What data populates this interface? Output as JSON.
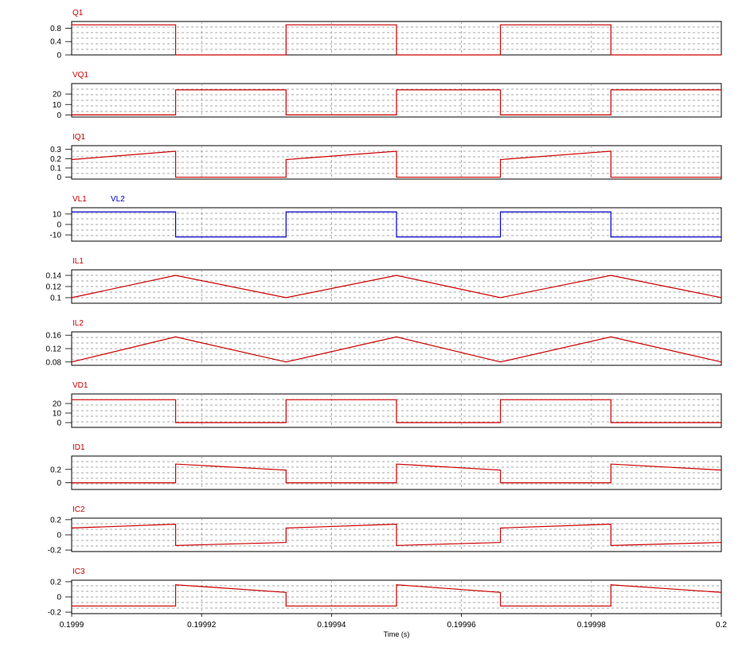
{
  "chart_data": {
    "type": "line",
    "xlabel": "Time (s)",
    "xlim": [
      0.1999,
      0.2
    ],
    "x_ticks": [
      0.1999,
      0.19992,
      0.19994,
      0.19996,
      0.19998,
      0.2
    ],
    "x_tick_labels": [
      "0.1999",
      "0.19992",
      "0.19994",
      "0.19996",
      "0.19998",
      "0.2"
    ],
    "colors": {
      "red": "#cc0000",
      "blue": "#0000cc"
    },
    "panels": [
      {
        "id": "q1",
        "labels": [
          {
            "text": "Q1",
            "color": "#cc0000"
          }
        ],
        "ylim": [
          0,
          1
        ],
        "yticks": [
          0,
          0.4,
          0.8
        ],
        "ytick_labels": [
          "0",
          "0.4",
          "0.8"
        ],
        "series": [
          {
            "color": "#cc0000",
            "x": [
              0.1999,
              0.199916,
              0.199916,
              0.199933,
              0.199933,
              0.19995,
              0.19995,
              0.199966,
              0.199966,
              0.199983,
              0.199983,
              0.2
            ],
            "y": [
              0.9,
              0.9,
              0,
              0,
              0.9,
              0.9,
              0,
              0,
              0.9,
              0.9,
              0,
              0
            ]
          }
        ]
      },
      {
        "id": "vq1",
        "labels": [
          {
            "text": "VQ1",
            "color": "#cc0000"
          }
        ],
        "ylim": [
          -2,
          30
        ],
        "yticks": [
          0,
          10,
          20
        ],
        "ytick_labels": [
          "0",
          "10",
          "20"
        ],
        "series": [
          {
            "color": "#cc0000",
            "x": [
              0.1999,
              0.199916,
              0.199916,
              0.199933,
              0.199933,
              0.19995,
              0.19995,
              0.199966,
              0.199966,
              0.199983,
              0.199983,
              0.2
            ],
            "y": [
              0,
              0,
              24,
              24,
              0,
              0,
              24,
              24,
              0,
              0,
              24,
              24
            ]
          }
        ]
      },
      {
        "id": "iq1",
        "labels": [
          {
            "text": "IQ1",
            "color": "#cc0000"
          }
        ],
        "ylim": [
          -0.02,
          0.34
        ],
        "yticks": [
          0,
          0.1,
          0.2,
          0.3
        ],
        "ytick_labels": [
          "0",
          "0.1",
          "0.2",
          "0.3"
        ],
        "series": [
          {
            "color": "#cc0000",
            "x": [
              0.1999,
              0.199916,
              0.199916,
              0.199933,
              0.199933,
              0.19995,
              0.19995,
              0.199966,
              0.199966,
              0.199983,
              0.199983,
              0.2
            ],
            "y": [
              0.19,
              0.28,
              0,
              0,
              0.19,
              0.28,
              0,
              0,
              0.19,
              0.28,
              0,
              0
            ]
          }
        ]
      },
      {
        "id": "vl",
        "labels": [
          {
            "text": "VL1",
            "color": "#cc0000"
          },
          {
            "text": "VL2",
            "color": "#0000cc"
          }
        ],
        "ylim": [
          -16,
          16
        ],
        "yticks": [
          -10,
          0,
          10
        ],
        "ytick_labels": [
          "-10",
          "0",
          "10"
        ],
        "series": [
          {
            "color": "#0000cc",
            "x": [
              0.1999,
              0.199916,
              0.199916,
              0.199933,
              0.199933,
              0.19995,
              0.19995,
              0.199966,
              0.199966,
              0.199983,
              0.199983,
              0.2
            ],
            "y": [
              12,
              12,
              -12,
              -12,
              12,
              12,
              -12,
              -12,
              12,
              12,
              -12,
              -12
            ]
          }
        ]
      },
      {
        "id": "il1",
        "labels": [
          {
            "text": "IL1",
            "color": "#cc0000"
          }
        ],
        "ylim": [
          0.09,
          0.15
        ],
        "yticks": [
          0.1,
          0.12,
          0.14
        ],
        "ytick_labels": [
          "0.1",
          "0.12",
          "0.14"
        ],
        "series": [
          {
            "color": "#cc0000",
            "x": [
              0.1999,
              0.199916,
              0.199933,
              0.19995,
              0.199966,
              0.199983,
              0.2
            ],
            "y": [
              0.1,
              0.14,
              0.1,
              0.14,
              0.1,
              0.14,
              0.1
            ]
          }
        ]
      },
      {
        "id": "il2",
        "labels": [
          {
            "text": "IL2",
            "color": "#cc0000"
          }
        ],
        "ylim": [
          0.07,
          0.17
        ],
        "yticks": [
          0.08,
          0.12,
          0.16
        ],
        "ytick_labels": [
          "0.08",
          "0.12",
          "0.16"
        ],
        "series": [
          {
            "color": "#cc0000",
            "x": [
              0.1999,
              0.199916,
              0.199933,
              0.19995,
              0.199966,
              0.199983,
              0.2
            ],
            "y": [
              0.08,
              0.155,
              0.08,
              0.155,
              0.08,
              0.155,
              0.08
            ]
          }
        ]
      },
      {
        "id": "vd1",
        "labels": [
          {
            "text": "VD1",
            "color": "#cc0000"
          }
        ],
        "ylim": [
          -5,
          30
        ],
        "yticks": [
          0,
          10,
          20
        ],
        "ytick_labels": [
          "0",
          "10",
          "20"
        ],
        "series": [
          {
            "color": "#cc0000",
            "x": [
              0.1999,
              0.199916,
              0.199916,
              0.199933,
              0.199933,
              0.19995,
              0.19995,
              0.199966,
              0.199966,
              0.199983,
              0.199983,
              0.2
            ],
            "y": [
              24,
              24,
              0,
              0,
              24,
              24,
              0,
              0,
              24,
              24,
              0,
              0
            ]
          }
        ]
      },
      {
        "id": "id1",
        "labels": [
          {
            "text": "ID1",
            "color": "#cc0000"
          }
        ],
        "ylim": [
          -0.1,
          0.4
        ],
        "yticks": [
          0,
          0.2
        ],
        "ytick_labels": [
          "0",
          "0.2"
        ],
        "series": [
          {
            "color": "#cc0000",
            "x": [
              0.1999,
              0.199916,
              0.199916,
              0.199933,
              0.199933,
              0.19995,
              0.19995,
              0.199966,
              0.199966,
              0.199983,
              0.199983,
              0.2
            ],
            "y": [
              0,
              0,
              0.28,
              0.19,
              0,
              0,
              0.28,
              0.19,
              0,
              0,
              0.28,
              0.19
            ]
          }
        ]
      },
      {
        "id": "ic2",
        "labels": [
          {
            "text": "IC2",
            "color": "#cc0000"
          }
        ],
        "ylim": [
          -0.22,
          0.22
        ],
        "yticks": [
          -0.2,
          0,
          0.2
        ],
        "ytick_labels": [
          "-0.2",
          "0",
          "0.2"
        ],
        "series": [
          {
            "color": "#cc0000",
            "x": [
              0.1999,
              0.199916,
              0.199916,
              0.199933,
              0.199933,
              0.19995,
              0.19995,
              0.199966,
              0.199966,
              0.199983,
              0.199983,
              0.2
            ],
            "y": [
              0.09,
              0.14,
              -0.14,
              -0.1,
              0.09,
              0.14,
              -0.14,
              -0.1,
              0.09,
              0.14,
              -0.14,
              -0.1
            ]
          }
        ]
      },
      {
        "id": "ic3",
        "labels": [
          {
            "text": "IC3",
            "color": "#cc0000"
          }
        ],
        "ylim": [
          -0.22,
          0.22
        ],
        "yticks": [
          -0.2,
          0,
          0.2
        ],
        "ytick_labels": [
          "-0.2",
          "0",
          "0.2"
        ],
        "series": [
          {
            "color": "#cc0000",
            "x": [
              0.1999,
              0.199916,
              0.199916,
              0.199933,
              0.199933,
              0.19995,
              0.19995,
              0.199966,
              0.199966,
              0.199983,
              0.199983,
              0.2
            ],
            "y": [
              -0.12,
              -0.12,
              0.16,
              0.06,
              -0.12,
              -0.12,
              0.16,
              0.06,
              -0.12,
              -0.12,
              0.16,
              0.06
            ]
          }
        ]
      }
    ]
  }
}
